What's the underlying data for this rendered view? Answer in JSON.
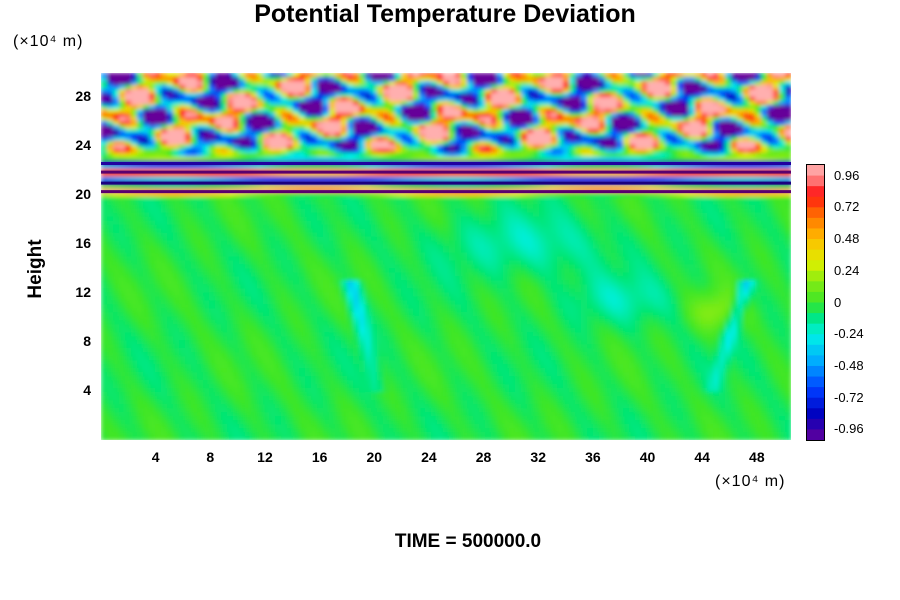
{
  "chart_data": {
    "type": "heatmap",
    "title": "Potential Temperature Deviation",
    "ylabel": "Height",
    "y_unit": "(×10⁴ m)",
    "x_unit": "(×10⁴ m)",
    "x_ticks": [
      "4",
      "8",
      "12",
      "16",
      "20",
      "24",
      "28",
      "32",
      "36",
      "40",
      "44",
      "48"
    ],
    "y_ticks": [
      "4",
      "8",
      "12",
      "16",
      "20",
      "24",
      "28"
    ],
    "xlim": [
      0,
      50.5
    ],
    "ylim": [
      0,
      30
    ],
    "colorbar_ticks": [
      "0.96",
      "0.72",
      "0.48",
      "0.24",
      "0",
      "-0.24",
      "-0.48",
      "-0.72",
      "-0.96"
    ],
    "colorbar_range": [
      -1.04,
      1.04
    ],
    "regions": [
      {
        "y_range": [
          0,
          20
        ],
        "value": 0.0,
        "note": "near zero, weak perturbations"
      },
      {
        "y_range": [
          20,
          23
        ],
        "value": "alternating ±0.96",
        "note": "strong horizontal bands"
      },
      {
        "y_range": [
          23,
          30
        ],
        "value": "oscillating ±0.96",
        "note": "wave cells"
      }
    ],
    "footer": "TIME = 500000.0"
  }
}
